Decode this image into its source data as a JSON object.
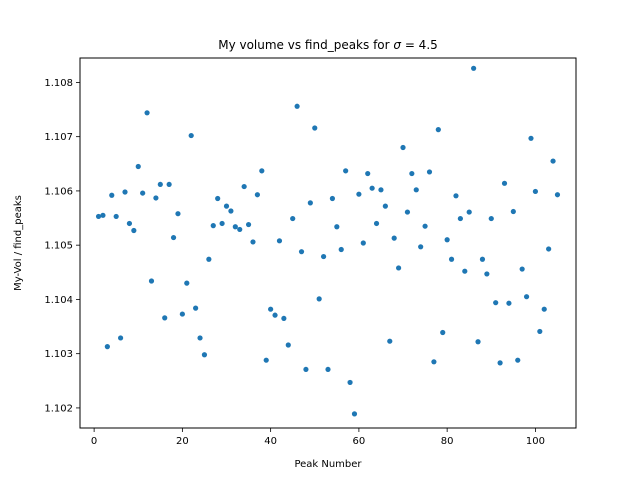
{
  "chart_data": {
    "type": "scatter",
    "title_prefix": "My volume vs find_peaks for ",
    "title_symbol": "σ",
    "title_suffix": " = 4.5",
    "xlabel": "Peak Number",
    "ylabel": "My-Vol / find_peaks",
    "xlim": [
      -3.2,
      109.2
    ],
    "ylim": [
      1.10163,
      1.10845
    ],
    "xticks": [
      0,
      20,
      40,
      60,
      80,
      100
    ],
    "xtick_labels": [
      "0",
      "20",
      "40",
      "60",
      "80",
      "100"
    ],
    "yticks": [
      1.102,
      1.103,
      1.104,
      1.105,
      1.106,
      1.107,
      1.108
    ],
    "ytick_labels": [
      "1.102",
      "1.103",
      "1.104",
      "1.105",
      "1.106",
      "1.107",
      "1.108"
    ],
    "grid": false,
    "color": "#1f77b4",
    "series": [
      {
        "x": [
          1,
          2,
          3,
          4,
          5,
          6,
          7,
          8,
          9,
          10,
          11,
          12,
          13,
          14,
          15,
          16,
          17,
          18,
          19,
          20,
          21,
          22,
          23,
          24,
          25,
          26,
          27,
          28,
          29,
          30,
          31,
          32,
          33,
          34,
          35,
          36,
          37,
          38,
          39,
          40,
          41,
          42,
          43,
          44,
          45,
          46,
          47,
          48,
          49,
          50,
          51,
          52,
          53,
          54,
          55,
          56,
          57,
          58,
          59,
          60,
          61,
          62,
          63,
          64,
          65,
          66,
          67,
          68,
          69,
          70,
          71,
          72,
          73,
          74,
          75,
          76,
          77,
          78,
          79,
          80,
          81,
          82,
          83,
          84,
          85,
          86,
          87,
          88,
          89,
          90,
          91,
          92,
          93,
          94,
          95,
          96,
          97,
          98,
          99,
          100,
          101,
          102,
          103,
          104,
          105
        ],
        "y": [
          1.10553,
          1.10555,
          1.10313,
          1.10592,
          1.10553,
          1.10329,
          1.10598,
          1.1054,
          1.10527,
          1.10645,
          1.10596,
          1.10744,
          1.10434,
          1.10587,
          1.10612,
          1.10366,
          1.10612,
          1.10514,
          1.10558,
          1.10373,
          1.1043,
          1.10702,
          1.10384,
          1.10329,
          1.10298,
          1.10474,
          1.10536,
          1.10586,
          1.1054,
          1.10572,
          1.10563,
          1.10534,
          1.10529,
          1.10608,
          1.10538,
          1.10506,
          1.10593,
          1.10637,
          1.10288,
          1.10382,
          1.10371,
          1.10508,
          1.10365,
          1.10316,
          1.10549,
          1.10756,
          1.10488,
          1.10271,
          1.10578,
          1.10716,
          1.10401,
          1.10479,
          1.10271,
          1.10586,
          1.10534,
          1.10492,
          1.10637,
          1.10247,
          1.10189,
          1.10594,
          1.10504,
          1.10632,
          1.10605,
          1.1054,
          1.10602,
          1.10572,
          1.10323,
          1.10513,
          1.10458,
          1.1068,
          1.10561,
          1.10632,
          1.10602,
          1.10497,
          1.10535,
          1.10635,
          1.10285,
          1.10713,
          1.10339,
          1.1051,
          1.10474,
          1.10591,
          1.10549,
          1.10452,
          1.10561,
          1.10826,
          1.10322,
          1.10474,
          1.10447,
          1.10549,
          1.10394,
          1.10283,
          1.10614,
          1.10393,
          1.10562,
          1.10288,
          1.10456,
          1.10405,
          1.10697,
          1.10599,
          1.10341,
          1.10382,
          1.10493,
          1.10655,
          1.10593
        ]
      }
    ]
  }
}
